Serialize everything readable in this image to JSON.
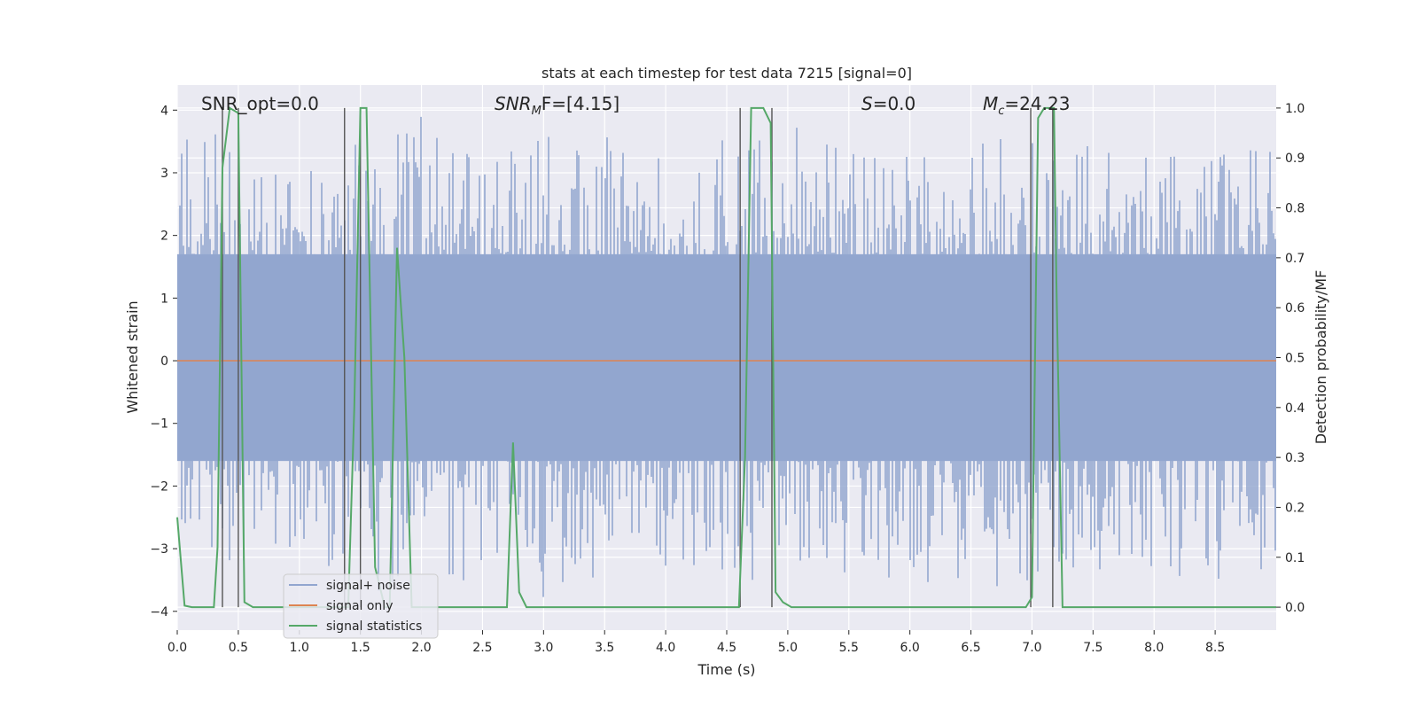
{
  "chart_data": {
    "type": "line",
    "title": "stats at each timestep for test data 7215 [signal=0]",
    "xlabel": "Time (s)",
    "ylabel": "Whitened strain",
    "y2label": "Detection probability/MF",
    "xlim": [
      0.0,
      9.0
    ],
    "ylim": [
      -4.3,
      4.4
    ],
    "y2lim": [
      -0.046,
      1.046
    ],
    "xticks": [
      "0.0",
      "0.5",
      "1.0",
      "1.5",
      "2.0",
      "2.5",
      "3.0",
      "3.5",
      "4.0",
      "4.5",
      "5.0",
      "5.5",
      "6.0",
      "6.5",
      "7.0",
      "7.5",
      "8.0",
      "8.5"
    ],
    "yticks": [
      "4",
      "3",
      "2",
      "1",
      "0",
      "−1",
      "−2",
      "−3",
      "−4"
    ],
    "y2ticks": [
      "1.0",
      "0.9",
      "0.8",
      "0.7",
      "0.6",
      "0.5",
      "0.4",
      "0.3",
      "0.2",
      "0.1",
      "0.0"
    ],
    "grid": true,
    "legend_placement": "lower-left",
    "annotations": {
      "snr_opt": "SNR_opt=0.0",
      "snr_mf_main": "SNR",
      "snr_mf_sub": "M",
      "snr_mf_tail": "F=[4.15]",
      "s_main": "S",
      "s_tail": "=0.0",
      "mc_main": "M",
      "mc_sub": "c",
      "mc_tail": "=24.23"
    },
    "series": [
      {
        "name": "signal+ noise",
        "color": "#92a6cf",
        "axis": "left",
        "envelope": {
          "x": [
            0.0,
            0.5,
            1.0,
            1.5,
            2.0,
            2.5,
            3.0,
            3.5,
            4.0,
            4.5,
            5.0,
            5.5,
            6.0,
            6.5,
            7.0,
            7.5,
            8.0,
            8.5,
            9.0
          ],
          "upper": [
            3.7,
            3.6,
            3.0,
            3.5,
            3.9,
            3.2,
            3.8,
            3.7,
            3.3,
            3.6,
            3.9,
            3.5,
            3.6,
            3.5,
            3.6,
            3.7,
            3.3,
            3.4,
            3.5
          ],
          "lower": [
            -3.3,
            -3.3,
            -3.1,
            -3.9,
            -3.4,
            -3.6,
            -3.9,
            -3.4,
            -3.3,
            -3.8,
            -3.3,
            -3.4,
            -3.6,
            -3.7,
            -3.5,
            -3.6,
            -3.8,
            -3.5,
            -3.4
          ]
        }
      },
      {
        "name": "signal only",
        "color": "#dd8452",
        "axis": "left",
        "x": [
          0.0,
          9.0
        ],
        "y": [
          0.0,
          0.0
        ]
      },
      {
        "name": "signal statistics",
        "color": "#55a868",
        "axis": "right",
        "x": [
          0.0,
          0.06,
          0.12,
          0.2,
          0.3,
          0.33,
          0.37,
          0.43,
          0.5,
          0.55,
          0.62,
          0.7,
          1.0,
          1.3,
          1.4,
          1.45,
          1.5,
          1.55,
          1.62,
          1.7,
          1.74,
          1.8,
          1.86,
          1.92,
          2.0,
          2.3,
          2.5,
          2.7,
          2.75,
          2.8,
          2.86,
          3.0,
          3.5,
          4.0,
          4.5,
          4.6,
          4.65,
          4.7,
          4.8,
          4.86,
          4.9,
          4.96,
          5.03,
          5.5,
          6.0,
          6.5,
          6.95,
          7.0,
          7.05,
          7.1,
          7.18,
          7.2,
          7.25,
          7.35,
          7.6,
          8.0,
          8.5,
          9.0
        ],
        "y": [
          0.18,
          0.003,
          0.0,
          0.0,
          0.0,
          0.12,
          0.88,
          1.0,
          0.99,
          0.01,
          0.0,
          0.0,
          0.0,
          0.0,
          0.0,
          0.4,
          1.0,
          1.0,
          0.08,
          0.0,
          0.0,
          0.72,
          0.5,
          0.0,
          0.0,
          0.0,
          0.0,
          0.0,
          0.33,
          0.03,
          0.0,
          0.0,
          0.0,
          0.0,
          0.0,
          0.0,
          0.3,
          1.0,
          1.0,
          0.97,
          0.03,
          0.01,
          0.0,
          0.0,
          0.0,
          0.0,
          0.0,
          0.02,
          0.98,
          1.0,
          1.0,
          0.65,
          0.0,
          0.0,
          0.0,
          0.0,
          0.0,
          0.0
        ]
      }
    ],
    "vertical_markers": [
      0.37,
      0.5,
      1.37,
      1.5,
      4.61,
      4.87,
      6.99,
      7.17
    ]
  }
}
